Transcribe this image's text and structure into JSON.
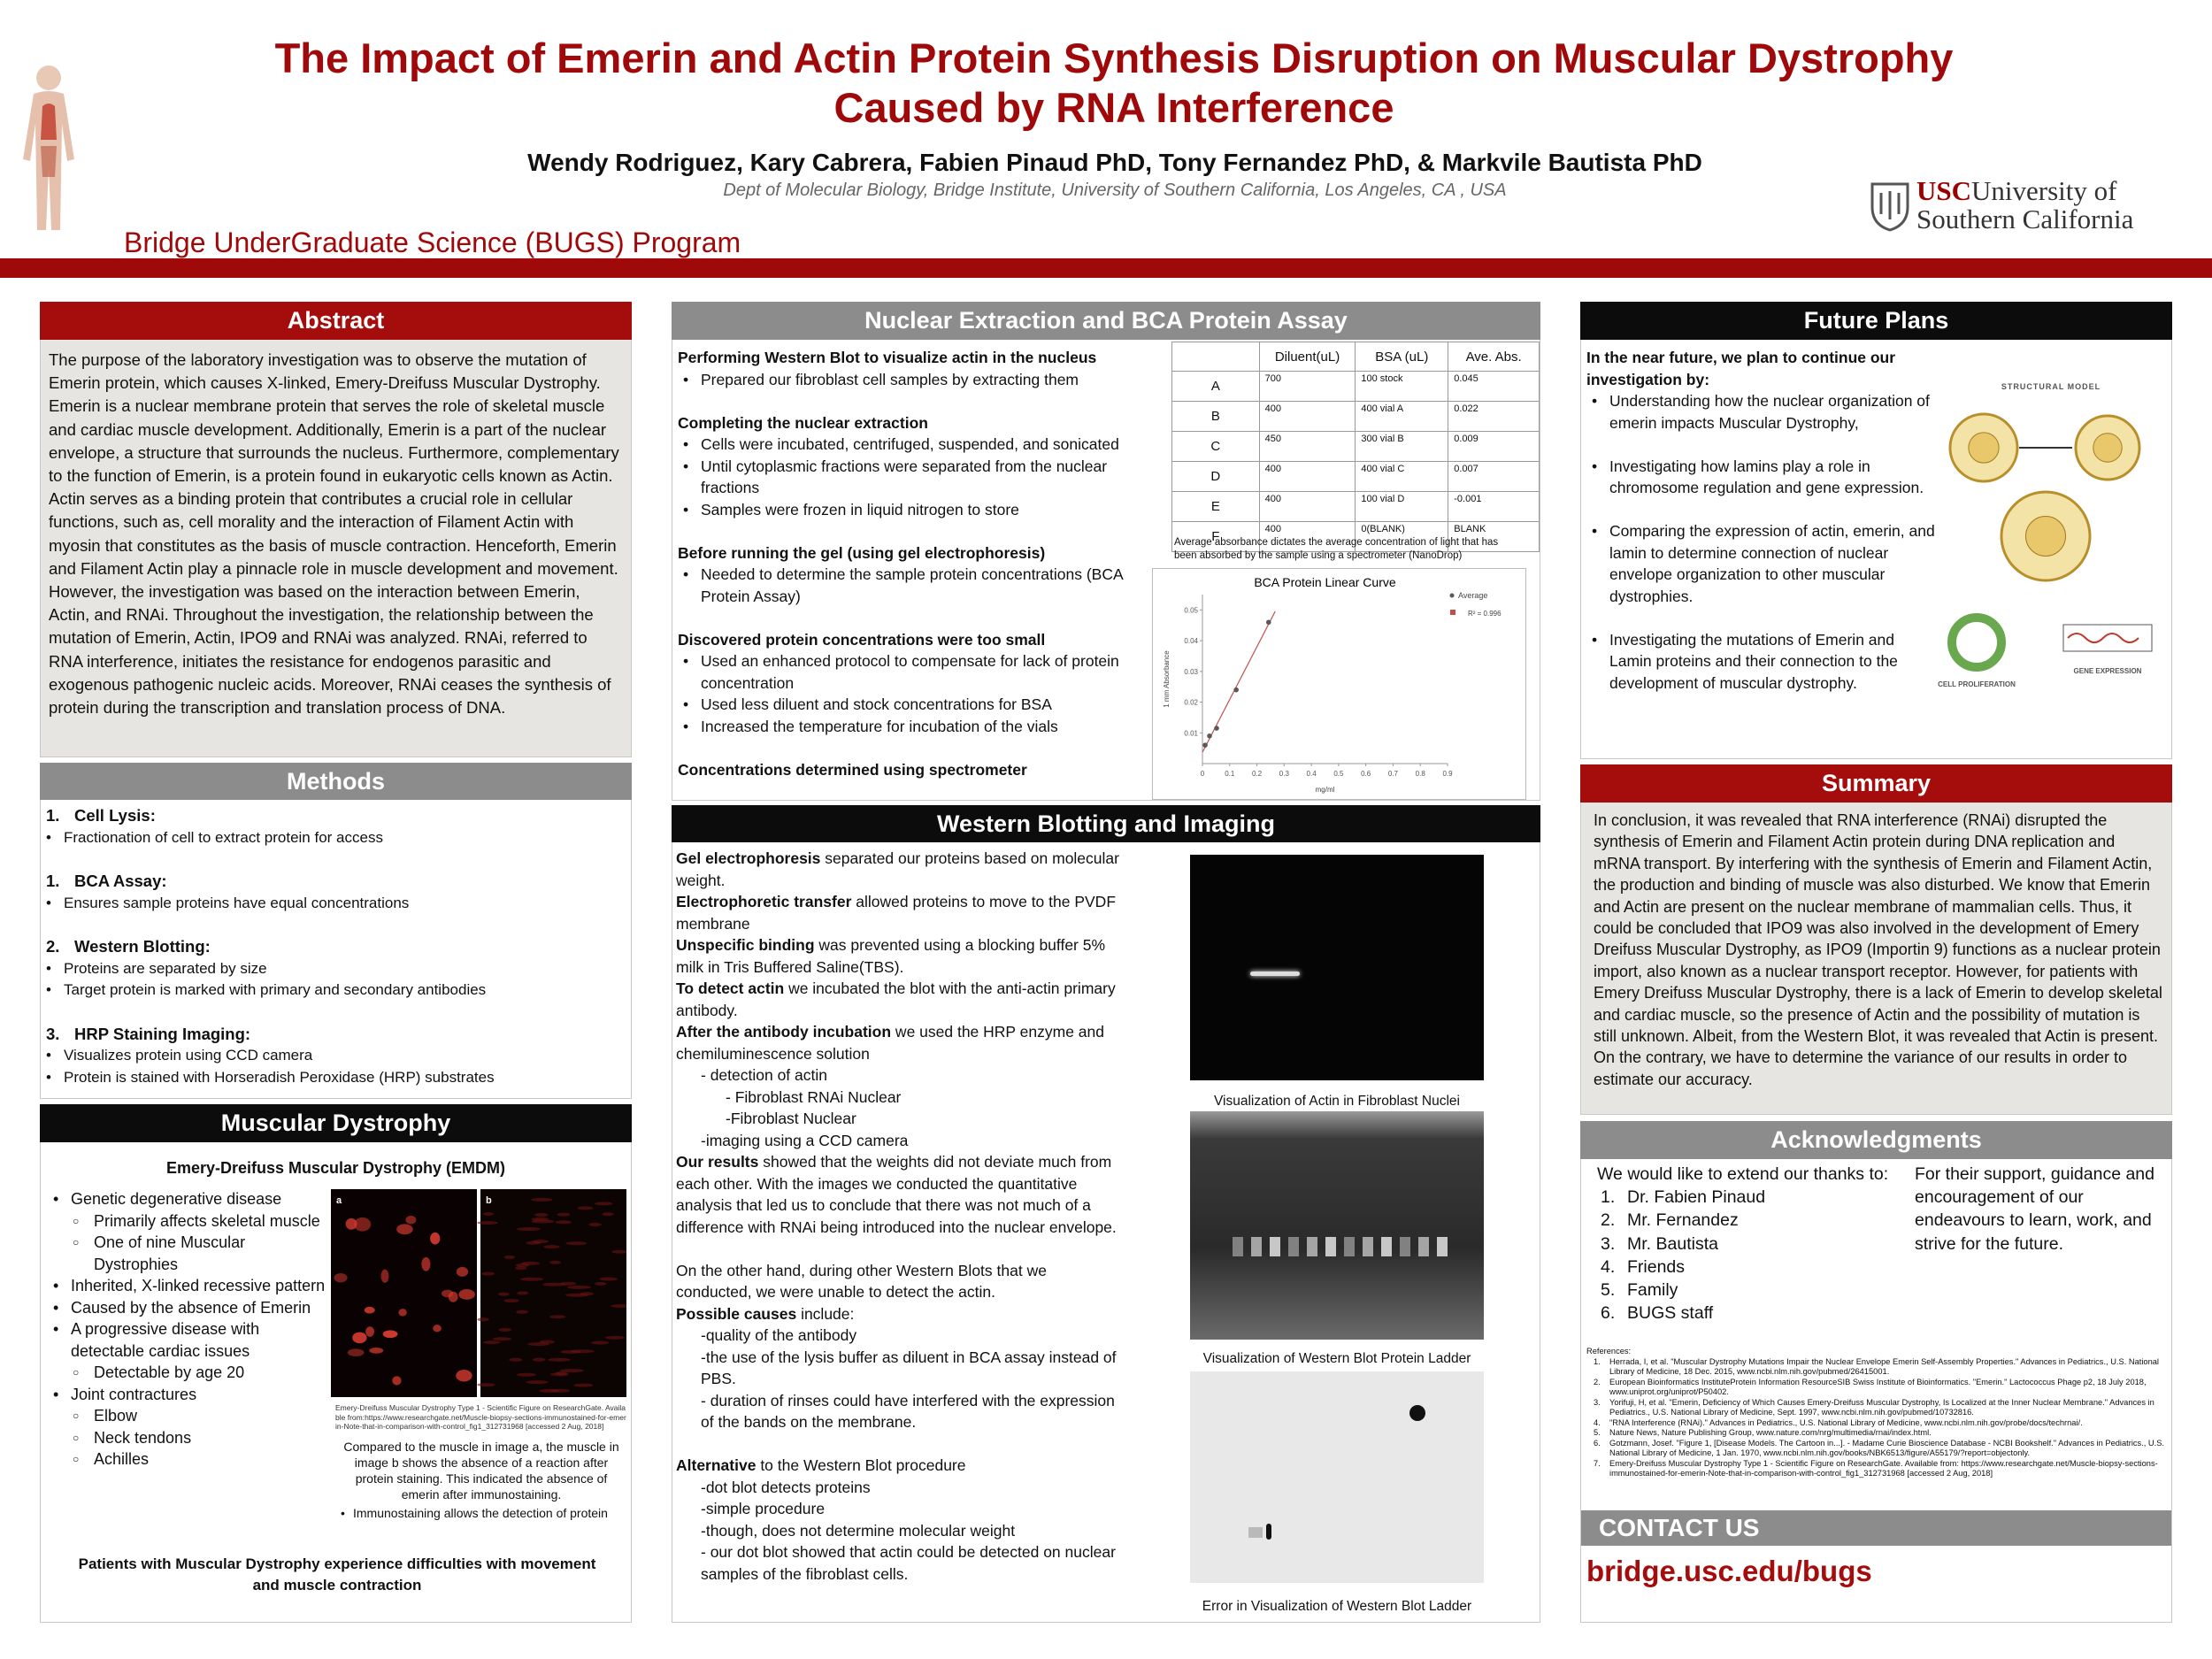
{
  "header": {
    "title_lines": [
      "The Impact of Emerin and Actin Protein Synthesis Disruption on Muscular Dystrophy",
      "Caused by RNA Interference"
    ],
    "authors": "Wendy Rodriguez, Kary Cabrera, Fabien Pinaud PhD, Tony Fernandez PhD, & Markvile Bautista PhD",
    "affiliation": "Dept of Molecular Biology, Bridge Institute, University of Southern California, Los Angeles, CA , USA",
    "program": "Bridge UnderGraduate Science (BUGS) Program",
    "logo_mark": "USC",
    "logo_top": "University of",
    "logo_bottom": "Southern California"
  },
  "abstract": {
    "heading": "Abstract",
    "text": "The purpose of the laboratory investigation was to observe the mutation of Emerin protein, which causes X-linked, Emery-Dreifuss Muscular Dystrophy. Emerin is a nuclear membrane protein that serves the role of skeletal muscle and cardiac muscle development. Additionally, Emerin is a part of the nuclear envelope, a structure that surrounds the nucleus. Furthermore, complementary to the function of Emerin, is a protein found in eukaryotic cells known as Actin. Actin serves as a binding protein that contributes a crucial role in cellular functions, such as, cell morality and the interaction of Filament Actin with myosin that constitutes as the basis of muscle contraction. Henceforth, Emerin and Filament Actin play a pinnacle role in muscle development and movement. However, the investigation was based on the interaction between Emerin, Actin, and RNAi. Throughout the investigation, the relationship between the mutation of Emerin, Actin, IPO9 and RNAi was analyzed. RNAi, referred to RNA interference, initiates the resistance for endogenos parasitic and exogenous pathogenic nucleic acids. Moreover, RNAi ceases the synthesis of protein during the transcription and translation process of DNA."
  },
  "methods": {
    "heading": "Methods",
    "steps": [
      {
        "number": "1.",
        "title": "Cell Lysis:",
        "bullets": [
          "Fractionation of cell to extract protein for access"
        ]
      },
      {
        "number": "1.",
        "title": "BCA Assay:",
        "bullets": [
          "Ensures sample proteins have equal concentrations"
        ]
      },
      {
        "number": "2.",
        "title": "Western Blotting:",
        "bullets": [
          "Proteins are separated by size",
          "Target protein is marked with primary and secondary antibodies"
        ]
      },
      {
        "number": "3.",
        "title": "HRP Staining Imaging:",
        "bullets": [
          "Visualizes protein using CCD camera",
          "Protein is stained with Horseradish Peroxidase (HRP) substrates"
        ]
      }
    ]
  },
  "muscular_dystrophy": {
    "heading": "Muscular Dystrophy",
    "subtitle": "Emery-Dreifuss Muscular Dystrophy (EMDM)",
    "bullets": [
      {
        "text": "Genetic degenerative disease",
        "sub": [
          "Primarily affects skeletal muscle",
          "One of nine Muscular Dystrophies"
        ]
      },
      {
        "text": "Inherited, X-linked recessive pattern"
      },
      {
        "text": "Caused by the absence of Emerin"
      },
      {
        "text": "A progressive disease with detectable cardiac issues",
        "sub": [
          "Detectable by age 20"
        ]
      },
      {
        "text": "Joint contractures",
        "sub": [
          "Elbow",
          "Neck tendons",
          "Achilles"
        ]
      }
    ],
    "figure_labels": [
      "a",
      "b"
    ],
    "figure_credit": "Emery-Dreifuss Muscular Dystrophy Type 1 - Scientific Figure on ResearchGate. Available from:https://www.researchgate.net/Muscle-biopsy-sections-immunostained-for-emerin-Note-that-in-comparison-with-control_fig1_312731968 [accessed 2 Aug, 2018]",
    "figure_caption": "Compared to the muscle in image a, the muscle in image b shows the absence of a reaction after protein staining. This indicated the absence of emerin after immunostaining.",
    "figure_bullet": "Immunostaining allows the detection of protein",
    "footer": "Patients with Muscular Dystrophy experience difficulties with movement and muscle contraction"
  },
  "nuclear_extraction": {
    "heading": "Nuclear Extraction and BCA Protein Assay",
    "paragraphs": [
      {
        "title": "Performing Western Blot to visualize actin in the nucleus",
        "bullets": [
          "Prepared our fibroblast cell samples by extracting them"
        ]
      },
      {
        "title": "Completing the nuclear extraction",
        "bullets": [
          "Cells were incubated, centrifuged, suspended, and sonicated",
          "Until cytoplasmic fractions were separated from the nuclear fractions",
          "Samples were frozen in liquid nitrogen to store"
        ]
      },
      {
        "title": "Before running the gel (using gel electrophoresis)",
        "bullets": [
          "Needed to determine the sample protein concentrations (BCA Protein Assay)"
        ]
      },
      {
        "title": "Discovered protein concentrations were too small",
        "bullets": [
          "Used an enhanced protocol to compensate for lack of protein concentration",
          "Used less diluent and stock concentrations for BSA",
          "Increased the temperature for incubation of the vials"
        ]
      },
      {
        "title": "Concentrations determined using spectrometer"
      }
    ],
    "table": {
      "columns": [
        "Diluent(uL)",
        "BSA (uL)",
        "Ave. Abs."
      ],
      "rows": [
        [
          "A",
          "700",
          "100 stock",
          "0.045"
        ],
        [
          "B",
          "400",
          "400 vial A",
          "0.022"
        ],
        [
          "C",
          "450",
          "300 vial B",
          "0.009"
        ],
        [
          "D",
          "400",
          "400 vial C",
          "0.007"
        ],
        [
          "E",
          "400",
          "100 vial D",
          "-0.001"
        ],
        [
          "F",
          "400",
          "0(BLANK)",
          "BLANK"
        ]
      ]
    },
    "table_caption": "Average absorbance dictates the average  concentration of light that has been absorbed by the sample using a spectrometer (NanoDrop)"
  },
  "chart_data": {
    "type": "scatter",
    "title": "BCA Protein Linear Curve",
    "x_label": "mg/ml",
    "y_label": "1 mm Absorbance",
    "series": [
      {
        "name": "Average",
        "color": "#595959",
        "x": [
          0.01,
          0.026,
          0.052,
          0.124,
          0.243
        ],
        "values": [
          0.006,
          0.009,
          0.0115,
          0.024,
          0.046
        ]
      }
    ],
    "trendline": {
      "label": "R² = 0.996",
      "color": "#c0504d"
    },
    "xlim": [
      0,
      0.9
    ],
    "xticks": [
      0,
      0.1,
      0.2,
      0.3,
      0.4,
      0.5,
      0.6,
      0.7,
      0.8,
      0.9
    ],
    "ylim": [
      0,
      0.055
    ],
    "yticks": [
      0.01,
      0.02,
      0.03,
      0.04,
      0.05
    ]
  },
  "western_blotting": {
    "heading": "Western Blotting and Imaging",
    "paragraphs": [
      [
        {
          "bold": "Gel electrophoresis",
          "text": " separated our proteins based on molecular weight."
        },
        {
          "bold": "Electrophoretic transfer",
          "text": " allowed proteins to move to the PVDF membrane"
        },
        {
          "bold": "Unspecific binding",
          "text": " was prevented using a blocking buffer 5% milk in Tris Buffered Saline(TBS)."
        },
        {
          "bold": "To detect actin",
          "text": " we incubated the blot with the anti-actin primary antibody."
        },
        {
          "bold": "After the antibody incubation",
          "text": " we used the HRP enzyme and chemiluminescence solution"
        },
        {
          "text": "- detection of actin",
          "indent": 1
        },
        {
          "text": "- Fibroblast RNAi Nuclear",
          "indent": 2
        },
        {
          "text": "-Fibroblast Nuclear",
          "indent": 2
        },
        {
          "text": "-imaging using a CCD camera",
          "indent": 1
        },
        {
          "bold": "Our results",
          "text": " showed that the weights did not deviate much from each other. With the images we conducted the quantitative analysis that led us to conclude that there was not much of a difference with RNAi being introduced into the nuclear envelope."
        }
      ],
      [
        {
          "text": "On the other hand, during other Western Blots that we conducted, we were unable to detect the actin."
        },
        {
          "bold": "Possible causes",
          "text": " include:"
        },
        {
          "text": "-quality of the antibody",
          "indent": 1
        },
        {
          "text": "-the use of the lysis buffer as diluent in BCA assay instead of PBS.",
          "indent": 1
        },
        {
          "text": "- duration of  rinses could have interfered with the expression of the bands on the membrane.",
          "indent": 1
        }
      ],
      [
        {
          "bold": "Alternative",
          "text": " to the Western Blot procedure"
        },
        {
          "text": "-dot blot detects proteins",
          "indent": 1
        },
        {
          "text": "-simple procedure",
          "indent": 1
        },
        {
          "text": "-though, does not determine molecular weight",
          "indent": 1
        },
        {
          "text": "- our dot blot showed that actin could be detected on nuclear samples of the fibroblast cells.",
          "indent": 1
        }
      ]
    ],
    "captions": [
      "Visualization of Actin in Fibroblast Nuclei",
      "Visualization of Western Blot Protein Ladder",
      "Error in Visualization of Western Blot Ladder"
    ]
  },
  "future_plans": {
    "heading": "Future Plans",
    "intro": "In the near future, we plan to continue our investigation by:",
    "bullets": [
      "Understanding how the nuclear organization of emerin impacts Muscular Dystrophy,",
      "Investigating how lamins play a role in chromosome regulation and gene expression.",
      "Comparing the expression of actin, emerin, and lamin to determine connection of nuclear envelope organization to other muscular dystrophies.",
      "Investigating the mutations of Emerin and Lamin proteins and their connection to the development of muscular dystrophy."
    ],
    "diagram_labels": [
      "STRUCTURAL MODEL",
      "CELL PROLIFERATION",
      "GENE EXPRESSION"
    ]
  },
  "summary": {
    "heading": "Summary",
    "text": "In conclusion, it was revealed that RNA interference (RNAi) disrupted the synthesis of Emerin and Filament Actin protein during DNA replication and mRNA transport. By interfering with the synthesis of Emerin and Filament Actin, the production and binding of muscle was also disturbed. We know that Emerin and Actin are present on the nuclear membrane of mammalian cells. Thus, it could be concluded that IPO9 was also involved in the development of Emery Dreifuss Muscular Dystrophy, as IPO9 (Importin 9) functions as a nuclear protein import, also known as a nuclear transport receptor. However, for patients with Emery Dreifuss Muscular Dystrophy, there is a lack of Emerin to develop skeletal and cardiac muscle, so the presence of Actin and the possibility of mutation is still unknown. Albeit, from the Western Blot, it was revealed that Actin is present. On the contrary, we have to determine the variance of our results in order to estimate our accuracy."
  },
  "acknowledgments": {
    "heading": "Acknowledgments",
    "intro": "We would like to extend our thanks to:",
    "items": [
      {
        "number": "1.",
        "text": "Dr. Fabien Pinaud"
      },
      {
        "number": "2.",
        "text": "Mr. Fernandez"
      },
      {
        "number": "3.",
        "text": "Mr. Bautista"
      },
      {
        "number": "4.",
        "text": "Friends"
      },
      {
        "number": "5.",
        "text": "Family"
      },
      {
        "number": "6.",
        "text": "BUGS staff"
      }
    ],
    "closing": "For their support, guidance and encouragement of our endeavours to learn, work, and strive for the future."
  },
  "references": {
    "heading": "References:",
    "items": [
      {
        "number": "1.",
        "text": "Herrada, I, et al. \"Muscular Dystrophy Mutations Impair the Nuclear Envelope Emerin Self-Assembly Properties.\" Advances in Pediatrics., U.S. National Library of Medicine, 18 Dec. 2015, www.ncbi.nlm.nih.gov/pubmed/26415001."
      },
      {
        "number": "2.",
        "text": "European Bioinformatics InstituteProtein Information ResourceSIB Swiss Institute of Bioinformatics. \"Emerin.\" Lactococcus Phage p2, 18 July 2018, www.uniprot.org/uniprot/P50402."
      },
      {
        "number": "3.",
        "text": "Yorifuji, H, et al. \"Emerin, Deficiency of Which Causes Emery-Dreifuss Muscular Dystrophy, Is Localized at the Inner Nuclear Membrane.\" Advances in Pediatrics., U.S. National Library of Medicine, Sept. 1997, www.ncbi.nlm.nih.gov/pubmed/10732816."
      },
      {
        "number": "4.",
        "text": "\"RNA Interference (RNAi).\" Advances in Pediatrics., U.S. National Library of Medicine, www.ncbi.nlm.nih.gov/probe/docs/techrnai/."
      },
      {
        "number": "5.",
        "text": "Nature News, Nature Publishing Group, www.nature.com/nrg/multimedia/rnai/index.html."
      },
      {
        "number": "6.",
        "text": "Gotzmann, Josef. \"Figure 1, [Disease Models. The Cartoon in...]. - Madame Curie Bioscience Database - NCBI Bookshelf.\" Advances in Pediatrics., U.S. National Library of Medicine, 1 Jan. 1970, www.ncbi.nlm.nih.gov/books/NBK6513/figure/A55179/?report=objectonly."
      },
      {
        "number": "7.",
        "text": "Emery-Dreifuss Muscular Dystrophy Type 1 - Scientific Figure on ResearchGate. Available from: https://www.researchgate.net/Muscle-biopsy-sections-immunostained-for-emerin-Note-that-in-comparison-with-control_fig1_312731968 [accessed 2 Aug, 2018]"
      }
    ]
  },
  "contact": {
    "heading": "CONTACT US",
    "link": "bridge.usc.edu/bugs"
  }
}
